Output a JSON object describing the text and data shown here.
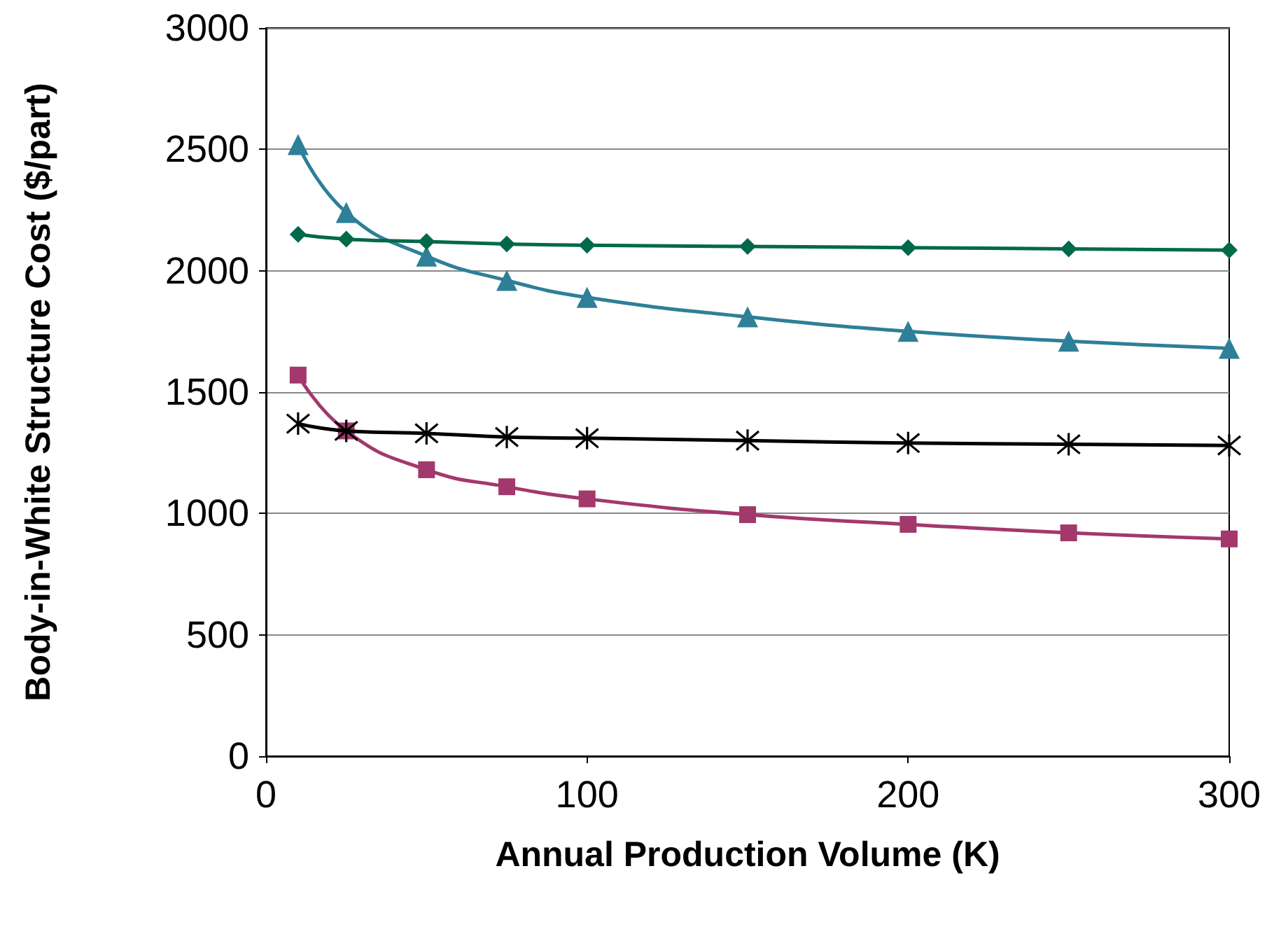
{
  "chart_data": {
    "type": "line",
    "xlabel": "Annual Production Volume (K)",
    "ylabel": "Body-in-White Structure Cost ($/part)",
    "x": [
      10,
      25,
      50,
      75,
      100,
      150,
      200,
      250,
      300
    ],
    "series": [
      {
        "color": "#2e7f98",
        "marker": "triangle",
        "values": [
          2520,
          2240,
          2060,
          1960,
          1890,
          1810,
          1750,
          1710,
          1680
        ]
      },
      {
        "color": "#00694a",
        "marker": "diamond",
        "values": [
          2150,
          2130,
          2120,
          2110,
          2105,
          2100,
          2095,
          2090,
          2085
        ]
      },
      {
        "color": "#000000",
        "marker": "cross",
        "values": [
          1370,
          1340,
          1330,
          1315,
          1310,
          1300,
          1290,
          1285,
          1280
        ]
      },
      {
        "color": "#a3386c",
        "marker": "square",
        "values": [
          1570,
          1340,
          1180,
          1110,
          1060,
          995,
          955,
          920,
          895
        ]
      }
    ],
    "xlim": [
      0,
      300
    ],
    "xticks": [
      0,
      100,
      200,
      300
    ],
    "ylim": [
      0,
      3000
    ],
    "yticks": [
      0,
      500,
      1000,
      1500,
      2000,
      2500,
      3000
    ],
    "grid": "y"
  }
}
